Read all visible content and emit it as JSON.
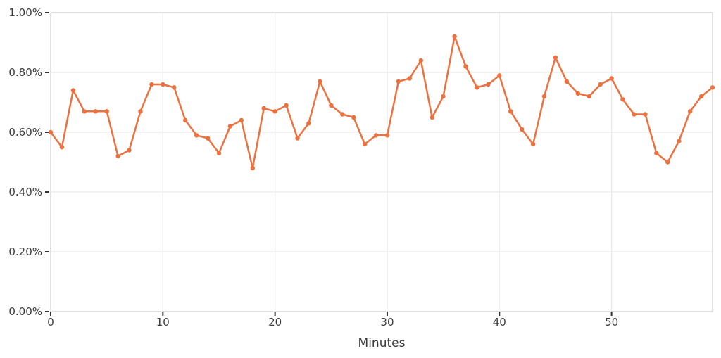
{
  "figure": {
    "xlabel": "Minutes"
  },
  "chart_data": {
    "type": "line",
    "title": "",
    "xlabel": "Minutes",
    "ylabel": "",
    "x": [
      0,
      1,
      2,
      3,
      4,
      5,
      6,
      7,
      8,
      9,
      10,
      11,
      12,
      13,
      14,
      15,
      16,
      17,
      18,
      19,
      20,
      21,
      22,
      23,
      24,
      25,
      26,
      27,
      28,
      29,
      30,
      31,
      32,
      33,
      34,
      35,
      36,
      37,
      38,
      39,
      40,
      41,
      42,
      43,
      44,
      45,
      46,
      47,
      48,
      49,
      50,
      51,
      52,
      53,
      54,
      55,
      56,
      57,
      58,
      59
    ],
    "y_percent": [
      0.6,
      0.55,
      0.74,
      0.67,
      0.67,
      0.67,
      0.52,
      0.54,
      0.67,
      0.76,
      0.76,
      0.75,
      0.64,
      0.59,
      0.58,
      0.53,
      0.62,
      0.64,
      0.48,
      0.68,
      0.67,
      0.69,
      0.58,
      0.63,
      0.77,
      0.69,
      0.66,
      0.65,
      0.56,
      0.59,
      0.59,
      0.77,
      0.78,
      0.84,
      0.65,
      0.72,
      0.92,
      0.82,
      0.75,
      0.76,
      0.79,
      0.67,
      0.61,
      0.56,
      0.72,
      0.85,
      0.77,
      0.73,
      0.72,
      0.76,
      0.78,
      0.71,
      0.66,
      0.66,
      0.53,
      0.5,
      0.57,
      0.67,
      0.72,
      0.75
    ],
    "xlim": [
      0,
      59
    ],
    "ylim": [
      0,
      1.0
    ],
    "x_ticks": [
      0,
      10,
      20,
      30,
      40,
      50
    ],
    "x_tick_labels": [
      "0",
      "10",
      "20",
      "30",
      "40",
      "50"
    ],
    "y_ticks": [
      0,
      0.2,
      0.4,
      0.6,
      0.8,
      1.0
    ],
    "y_tick_labels": [
      "0.00%",
      "0.20%",
      "0.40%",
      "0.60%",
      "0.80%",
      "1.00%"
    ],
    "grid": true,
    "legend": false,
    "marker": "circle"
  },
  "colors": {
    "line": "#ED703F",
    "marker": "#ED703F",
    "gridline": "#e9e9e9",
    "frame": "#d6d6d6",
    "tick_mark": "#333333",
    "tick_label": "#3b3b3b",
    "axis_title": "#3a3a3a",
    "background": "#ffffff"
  }
}
